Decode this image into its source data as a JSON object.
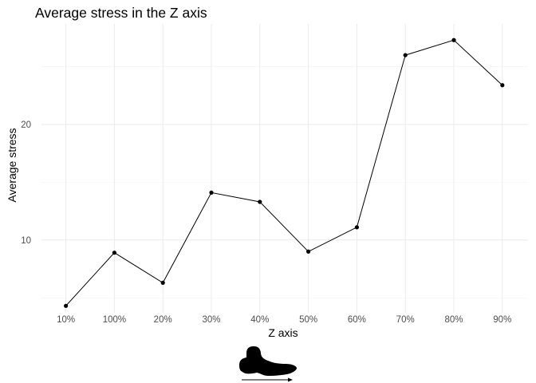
{
  "chart_data": {
    "type": "line",
    "title": "Average stress in the Z axis",
    "xlabel": "Z axis",
    "ylabel": "Average stress",
    "categories": [
      "10%",
      "100%",
      "20%",
      "30%",
      "40%",
      "50%",
      "60%",
      "70%",
      "80%",
      "90%"
    ],
    "series": [
      {
        "values": [
          4.3,
          8.9,
          6.3,
          14.1,
          13.3,
          9.0,
          11.1,
          26.0,
          27.3,
          23.4
        ]
      }
    ],
    "ylim": [
      3.7,
      28.7
    ],
    "yticks": [
      10,
      20
    ],
    "grid": true,
    "colors": {
      "line": "#000000",
      "point": "#000000",
      "grid": "#ebebeb",
      "tick_text": "#4d4d4d"
    },
    "icons": [
      "bone-scan-silhouette-icon",
      "arrow-right-icon"
    ]
  }
}
